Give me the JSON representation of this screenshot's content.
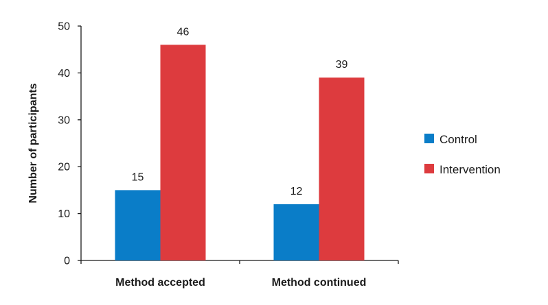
{
  "chart_data": {
    "type": "bar",
    "title": "",
    "xlabel": "",
    "ylabel": "Number of participants",
    "categories": [
      "Method accepted",
      "Method continued"
    ],
    "series": [
      {
        "name": "Control",
        "values": [
          15,
          12
        ],
        "color": "#0a7dc8"
      },
      {
        "name": "Intervention",
        "values": [
          46,
          39
        ],
        "color": "#dd3b3e"
      }
    ],
    "ylim": [
      0,
      50
    ],
    "yticks": [
      0,
      10,
      20,
      30,
      40,
      50
    ],
    "grid": false,
    "legend": "right"
  }
}
